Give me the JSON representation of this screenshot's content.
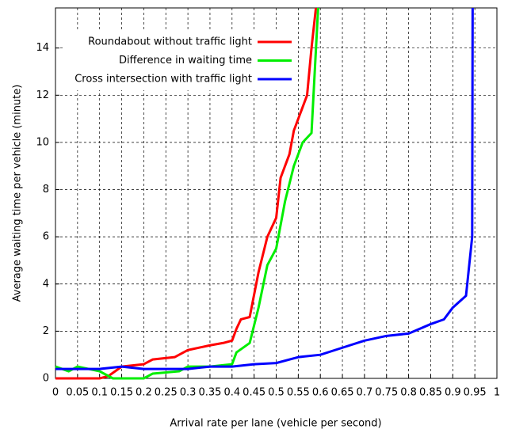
{
  "chart_data": {
    "type": "line",
    "xlabel": "Arrival rate per lane (vehicle per second)",
    "ylabel": "Average waiting time per vehicle (minute)",
    "xlim": [
      0,
      1
    ],
    "ylim": [
      0,
      15.7
    ],
    "xticks": [
      0,
      0.05,
      0.1,
      0.15,
      0.2,
      0.25,
      0.3,
      0.35,
      0.4,
      0.45,
      0.5,
      0.55,
      0.6,
      0.65,
      0.7,
      0.75,
      0.8,
      0.85,
      0.9,
      0.95,
      1
    ],
    "yticks": [
      0,
      2,
      4,
      6,
      8,
      10,
      12,
      14
    ],
    "grid": true,
    "legend": "upper-left",
    "series": [
      {
        "name": "Roundabout without traffic light",
        "color": "#ff0000",
        "x": [
          0,
          0.1,
          0.12,
          0.15,
          0.2,
          0.22,
          0.27,
          0.29,
          0.3,
          0.35,
          0.38,
          0.4,
          0.41,
          0.42,
          0.44,
          0.46,
          0.48,
          0.5,
          0.51,
          0.53,
          0.54,
          0.56,
          0.57,
          0.58,
          0.59
        ],
        "values": [
          0,
          0,
          0.1,
          0.5,
          0.6,
          0.8,
          0.9,
          1.1,
          1.2,
          1.4,
          1.5,
          1.6,
          2.1,
          2.5,
          2.6,
          4.5,
          6.0,
          6.8,
          8.5,
          9.5,
          10.5,
          11.5,
          12.0,
          14,
          15.7
        ]
      },
      {
        "name": "Difference in waiting time",
        "color": "#00ee00",
        "x": [
          0,
          0.03,
          0.05,
          0.1,
          0.13,
          0.2,
          0.22,
          0.28,
          0.3,
          0.35,
          0.4,
          0.41,
          0.44,
          0.46,
          0.48,
          0.5,
          0.52,
          0.54,
          0.56,
          0.58,
          0.595
        ],
        "values": [
          0.5,
          0.3,
          0.5,
          0.3,
          0,
          0,
          0.2,
          0.3,
          0.5,
          0.5,
          0.6,
          1.1,
          1.5,
          3.0,
          4.8,
          5.5,
          7.5,
          9.0,
          10.0,
          10.4,
          15.7
        ]
      },
      {
        "name": "Cross intersection with traffic light",
        "color": "#0000ff",
        "x": [
          0,
          0.1,
          0.15,
          0.2,
          0.3,
          0.35,
          0.4,
          0.45,
          0.5,
          0.55,
          0.6,
          0.65,
          0.7,
          0.75,
          0.8,
          0.85,
          0.88,
          0.9,
          0.93,
          0.944,
          0.945
        ],
        "values": [
          0.4,
          0.4,
          0.5,
          0.4,
          0.4,
          0.5,
          0.5,
          0.6,
          0.65,
          0.9,
          1.0,
          1.3,
          1.6,
          1.8,
          1.9,
          2.3,
          2.5,
          3.0,
          3.5,
          6,
          15.7
        ]
      }
    ]
  }
}
